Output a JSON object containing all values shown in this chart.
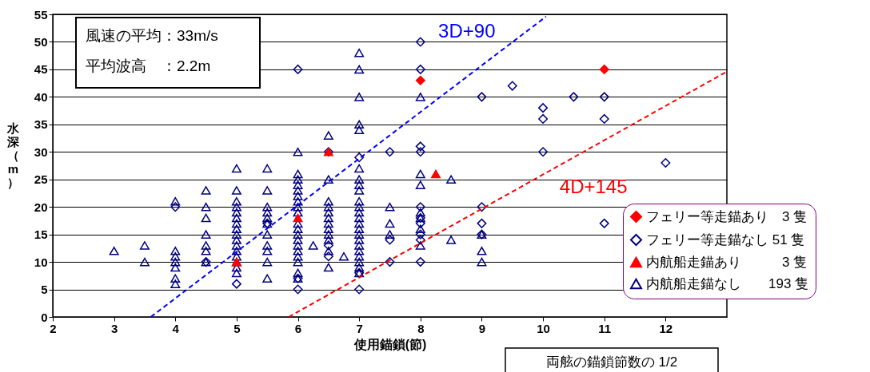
{
  "chart_data": {
    "type": "scatter",
    "xlabel": "使用錨鎖(節)",
    "ylabel": "水深（m）",
    "xlim": [
      2,
      13
    ],
    "xticks": [
      2,
      3,
      4,
      5,
      6,
      7,
      8,
      9,
      10,
      11,
      12
    ],
    "ylim": [
      0,
      55
    ],
    "yticks": [
      0,
      5,
      10,
      15,
      20,
      25,
      30,
      35,
      40,
      45,
      50,
      55
    ],
    "grid": "y",
    "legend": "bottom right",
    "annotations": [
      "風速の平均：33m/s",
      "平均波高　：2.2m",
      "両舷の錨鎖節数の 1/2"
    ],
    "series": [
      {
        "name": "フェリー等走錨あり　3 隻",
        "type": "scatter",
        "marker": "diamond",
        "color": "#ff0000",
        "x": [
          8,
          11
        ],
        "values": [
          43,
          45
        ]
      },
      {
        "name": "フェリー等走錨なし 51 隻",
        "type": "scatter",
        "marker": "diamond",
        "color": "#000080",
        "x": [
          4,
          4.5,
          5,
          5.5,
          6,
          6,
          6,
          6.5,
          6.5,
          6.5,
          7,
          7,
          7,
          7.5,
          7.5,
          7.5,
          8,
          8,
          8,
          8,
          8,
          8,
          8,
          8,
          8,
          8,
          9,
          9,
          9,
          9,
          9.5,
          10,
          10,
          10,
          10.5,
          11,
          11,
          11,
          12
        ],
        "values": [
          20,
          10,
          6,
          17,
          45,
          7,
          5,
          30,
          13,
          11,
          29,
          8,
          5,
          30,
          14,
          10,
          50,
          45,
          31,
          30,
          20,
          18,
          17,
          15,
          14,
          10,
          40,
          20,
          17,
          15,
          42,
          38,
          36,
          30,
          40,
          40,
          36,
          17,
          28
        ]
      },
      {
        "name": "内航船走錨あり　　　3 隻",
        "type": "scatter",
        "marker": "triangle",
        "color": "#ff0000",
        "x": [
          5,
          6,
          6.5,
          8.25
        ],
        "values": [
          10,
          18,
          30,
          26
        ]
      },
      {
        "name": "内航船走錨なし　　193 隻",
        "type": "scatter",
        "marker": "triangle",
        "color": "#000080",
        "x": [
          3,
          3.5,
          3.5,
          4,
          4,
          4,
          4,
          4,
          4,
          4,
          4.5,
          4.5,
          4.5,
          4.5,
          4.5,
          4.5,
          4.5,
          5,
          5,
          5,
          5,
          5,
          5,
          5,
          5,
          5,
          5,
          5,
          5,
          5,
          5,
          5,
          5,
          5.5,
          5.5,
          5.5,
          5.5,
          5.5,
          5.5,
          5.5,
          5.5,
          5.5,
          5.5,
          5.5,
          6,
          6,
          6,
          6,
          6,
          6,
          6,
          6,
          6,
          6,
          6,
          6,
          6,
          6,
          6,
          6,
          6,
          6,
          6,
          6.25,
          6.5,
          6.5,
          6.5,
          6.5,
          6.5,
          6.5,
          6.5,
          6.5,
          6.5,
          6.5,
          6.5,
          6.5,
          6.75,
          7,
          7,
          7,
          7,
          7,
          7,
          7,
          7,
          7,
          7,
          7,
          7,
          7,
          7,
          7,
          7,
          7,
          7,
          7,
          7,
          7,
          7,
          7,
          7.5,
          7.5,
          7.5,
          8,
          8,
          8,
          8,
          8,
          8,
          8,
          8.5,
          8.5,
          9,
          9,
          9
        ],
        "values": [
          12,
          13,
          10,
          21,
          12,
          11,
          10,
          9,
          7,
          6,
          23,
          20,
          18,
          15,
          13,
          12,
          10,
          27,
          23,
          21,
          20,
          19,
          18,
          17,
          16,
          15,
          14,
          13,
          12,
          11,
          10,
          9,
          8,
          27,
          23,
          20,
          19,
          18,
          17,
          15,
          13,
          12,
          10,
          7,
          30,
          26,
          25,
          24,
          23,
          22,
          21,
          20,
          19,
          17,
          16,
          15,
          14,
          13,
          12,
          11,
          10,
          8,
          7,
          13,
          33,
          25,
          21,
          20,
          19,
          18,
          17,
          16,
          15,
          14,
          12,
          9,
          11,
          48,
          45,
          40,
          35,
          34,
          27,
          25,
          24,
          23,
          21,
          20,
          19,
          18,
          17,
          16,
          15,
          14,
          13,
          12,
          11,
          10,
          9,
          8,
          20,
          17,
          15,
          40,
          26,
          24,
          19,
          18,
          16,
          13,
          25,
          14,
          15,
          12,
          10
        ]
      },
      {
        "name": "3D+90",
        "type": "line",
        "line_style": "dashed",
        "marker": "none",
        "color": "#0000ff",
        "x": [
          3.6,
          10.05
        ],
        "values": [
          0,
          54.6
        ]
      },
      {
        "name": "4D+145",
        "type": "line",
        "line_style": "dashed",
        "marker": "none",
        "color": "#ff0000",
        "x": [
          5.85,
          13
        ],
        "values": [
          0,
          44.6
        ]
      }
    ]
  }
}
